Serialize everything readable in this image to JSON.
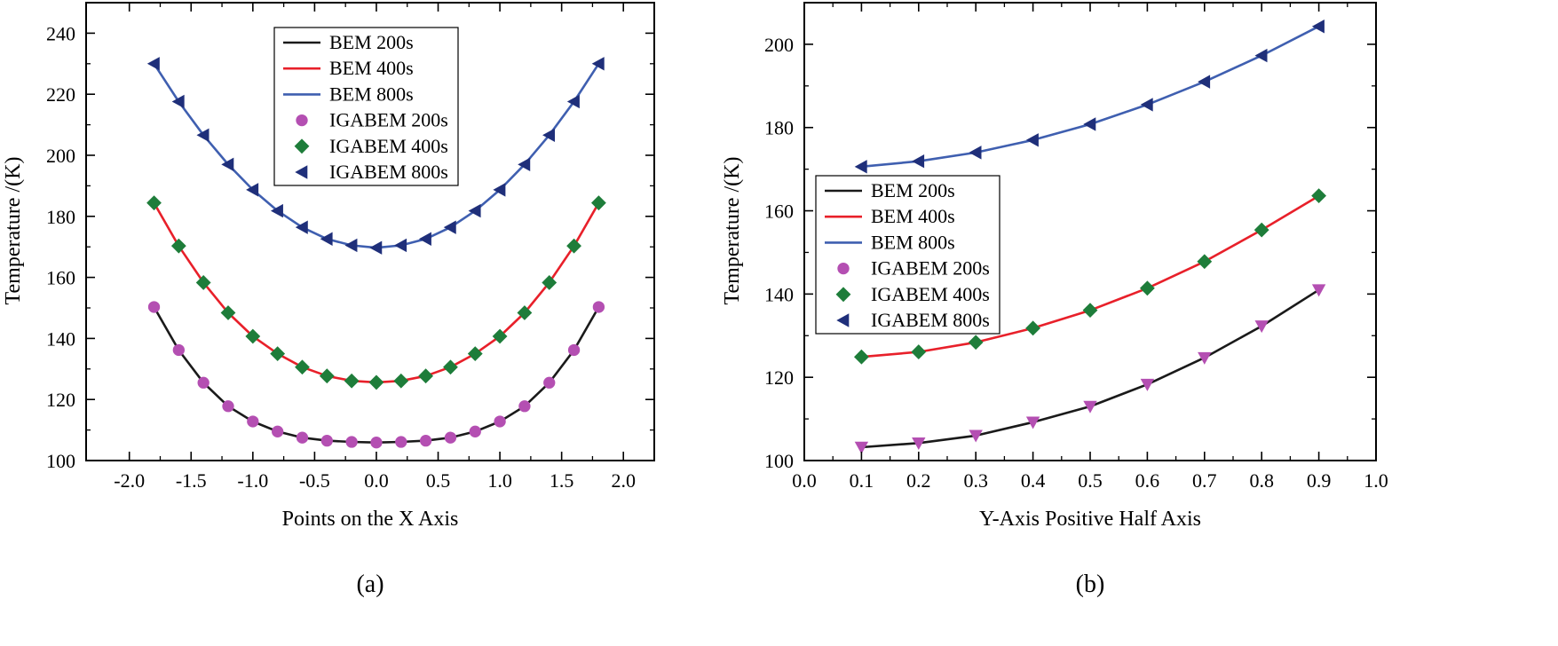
{
  "chart_data": [
    {
      "type": "line",
      "caption": "(a)",
      "xlabel": "Points on the X Axis",
      "ylabel": "Temperature /(K)",
      "xlim": [
        -2.35,
        2.25
      ],
      "ylim": [
        100,
        250
      ],
      "x_ticks": [
        -2.0,
        -1.5,
        -1.0,
        -0.5,
        0.0,
        0.5,
        1.0,
        1.5,
        2.0
      ],
      "x_tick_labels": [
        "-2.0",
        "-1.5",
        "-1.0",
        "-0.5",
        "0.0",
        "0.5",
        "1.0",
        "1.5",
        "2.0"
      ],
      "y_ticks": [
        100,
        120,
        140,
        160,
        180,
        200,
        220,
        240
      ],
      "y_tick_labels": [
        "100",
        "120",
        "140",
        "160",
        "180",
        "200",
        "220",
        "240"
      ],
      "legend_position": "top-center",
      "x": [
        -1.8,
        -1.6,
        -1.4,
        -1.2,
        -1.0,
        -0.8,
        -0.6,
        -0.4,
        -0.2,
        0.0,
        0.2,
        0.4,
        0.6,
        0.8,
        1.0,
        1.2,
        1.4,
        1.6,
        1.8
      ],
      "series": [
        {
          "name": "BEM 200s",
          "kind": "line",
          "color": "#1a1a1a",
          "values": [
            150.3,
            136.2,
            125.5,
            117.8,
            112.8,
            109.5,
            107.5,
            106.5,
            106.1,
            105.9,
            106.1,
            106.5,
            107.5,
            109.5,
            112.8,
            117.8,
            125.5,
            136.2,
            150.3
          ]
        },
        {
          "name": "BEM 400s",
          "kind": "line",
          "color": "#e8202a",
          "values": [
            184.4,
            170.3,
            158.3,
            148.4,
            140.7,
            135.0,
            130.6,
            127.7,
            126.1,
            125.6,
            126.1,
            127.7,
            130.6,
            135.0,
            140.7,
            148.4,
            158.3,
            170.3,
            184.4
          ]
        },
        {
          "name": "BEM 800s",
          "kind": "line",
          "color": "#3f5fb0",
          "values": [
            230.0,
            217.6,
            206.6,
            197.0,
            188.7,
            181.8,
            176.4,
            172.6,
            170.5,
            169.7,
            170.5,
            172.6,
            176.4,
            181.8,
            188.7,
            197.0,
            206.6,
            217.6,
            230.0
          ]
        },
        {
          "name": "IGABEM 200s",
          "kind": "marker",
          "marker": "circle",
          "color": "#b44fb2",
          "values": [
            150.3,
            136.2,
            125.5,
            117.8,
            112.8,
            109.5,
            107.5,
            106.5,
            106.1,
            105.9,
            106.1,
            106.5,
            107.5,
            109.5,
            112.8,
            117.8,
            125.5,
            136.2,
            150.3
          ]
        },
        {
          "name": "IGABEM 400s",
          "kind": "marker",
          "marker": "diamond",
          "color": "#1e7d3a",
          "values": [
            184.4,
            170.3,
            158.3,
            148.4,
            140.7,
            135.0,
            130.6,
            127.7,
            126.1,
            125.6,
            126.1,
            127.7,
            130.6,
            135.0,
            140.7,
            148.4,
            158.3,
            170.3,
            184.4
          ]
        },
        {
          "name": "IGABEM 800s",
          "kind": "marker",
          "marker": "triangle-left",
          "color": "#1f2f7a",
          "values": [
            230.0,
            217.6,
            206.6,
            197.0,
            188.7,
            181.8,
            176.4,
            172.6,
            170.5,
            169.7,
            170.5,
            172.6,
            176.4,
            181.8,
            188.7,
            197.0,
            206.6,
            217.6,
            230.0
          ]
        }
      ]
    },
    {
      "type": "line",
      "caption": "(b)",
      "xlabel": "Y-Axis Positive Half Axis",
      "ylabel": "Temperature /(K)",
      "xlim": [
        0.0,
        1.0
      ],
      "ylim": [
        100,
        210
      ],
      "x_ticks": [
        0.0,
        0.1,
        0.2,
        0.3,
        0.4,
        0.5,
        0.6,
        0.7,
        0.8,
        0.9,
        1.0
      ],
      "x_tick_labels": [
        "0.0",
        "0.1",
        "0.2",
        "0.3",
        "0.4",
        "0.5",
        "0.6",
        "0.7",
        "0.8",
        "0.9",
        "1.0"
      ],
      "y_ticks": [
        100,
        120,
        140,
        160,
        180,
        200
      ],
      "y_tick_labels": [
        "100",
        "120",
        "140",
        "160",
        "180",
        "200"
      ],
      "legend_position": "middle-left",
      "x": [
        0.1,
        0.2,
        0.3,
        0.4,
        0.5,
        0.6,
        0.7,
        0.8,
        0.9
      ],
      "series": [
        {
          "name": "BEM 200s",
          "kind": "line",
          "color": "#1a1a1a",
          "values": [
            103.2,
            104.2,
            106.0,
            109.2,
            113.0,
            118.3,
            124.7,
            132.3,
            141.0
          ]
        },
        {
          "name": "BEM 400s",
          "kind": "line",
          "color": "#e8202a",
          "values": [
            124.9,
            126.1,
            128.4,
            131.8,
            136.1,
            141.4,
            147.8,
            155.4,
            163.6
          ]
        },
        {
          "name": "BEM 800s",
          "kind": "line",
          "color": "#3f5fb0",
          "values": [
            170.6,
            171.9,
            174.0,
            177.0,
            180.8,
            185.5,
            191.0,
            197.3,
            204.3
          ]
        },
        {
          "name": "IGABEM 200s",
          "kind": "marker",
          "marker": "circle",
          "color": "#b44fb2",
          "values": [
            103.2,
            104.2,
            106.0,
            109.2,
            113.0,
            118.3,
            124.7,
            132.3,
            141.0
          ]
        },
        {
          "name": "IGABEM 400s",
          "kind": "marker",
          "marker": "diamond",
          "color": "#1e7d3a",
          "values": [
            124.9,
            126.1,
            128.4,
            131.8,
            136.1,
            141.4,
            147.8,
            155.4,
            163.6
          ]
        },
        {
          "name": "IGABEM 800s",
          "kind": "marker",
          "marker": "triangle-left",
          "color": "#1f2f7a",
          "values": [
            170.6,
            171.9,
            174.0,
            177.0,
            180.8,
            185.5,
            191.0,
            197.3,
            204.3
          ]
        }
      ],
      "plotted_markers": [
        {
          "name": "IGABEM 200s (plotted as down-triangles)",
          "marker": "triangle-down",
          "color": "#b44fb2",
          "values": [
            103.2,
            104.2,
            106.0,
            109.2,
            113.0,
            118.3,
            124.7,
            132.3,
            141.0
          ]
        },
        {
          "name": "IGABEM 400s",
          "marker": "diamond",
          "color": "#1e7d3a",
          "values": [
            124.9,
            126.1,
            128.4,
            131.8,
            136.1,
            141.4,
            147.8,
            155.4,
            163.6
          ]
        }
      ]
    }
  ]
}
